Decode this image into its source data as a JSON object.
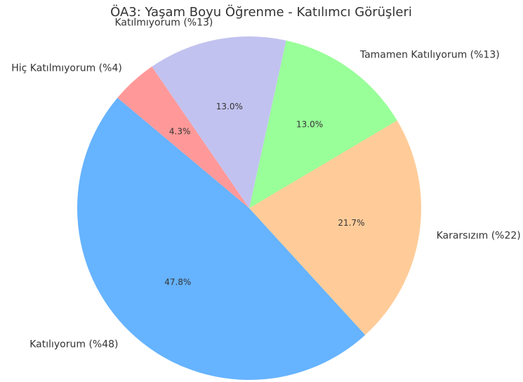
{
  "chart_data": {
    "type": "pie",
    "title": "ÖA3: Yaşam Boyu Öğrenme - Katılımcı Görüşleri",
    "categories": [
      "Katılıyorum (%48)",
      "Kararsızım (%22)",
      "Tamamen Katılıyorum (%13)",
      "Katılmıyorum (%13)",
      "Hiç Katılmıyorum (%4)"
    ],
    "values": [
      47.8,
      21.7,
      13.0,
      13.0,
      4.3
    ],
    "value_labels": [
      "47.8%",
      "21.7%",
      "13.0%",
      "13.0%",
      "4.3%"
    ],
    "colors": [
      "#66b3ff",
      "#ffcc99",
      "#99ff99",
      "#c2c2f0",
      "#ff9999"
    ],
    "start_angle": 140
  }
}
